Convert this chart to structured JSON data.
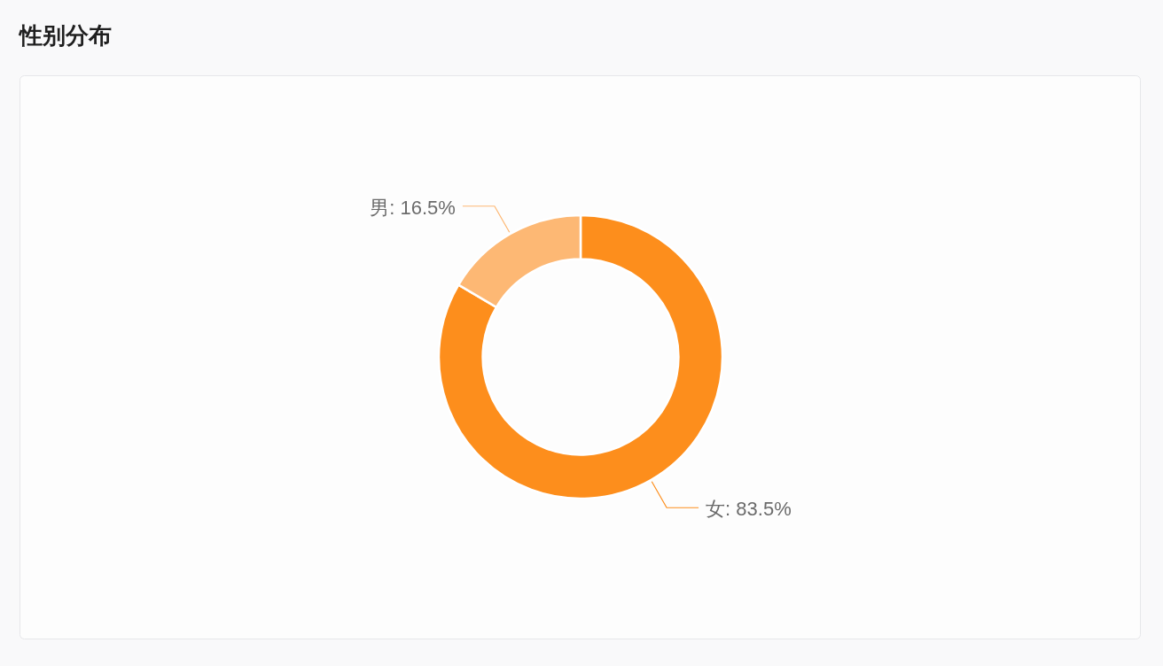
{
  "chart_data": {
    "type": "donut",
    "title": "性别分布",
    "categories": [
      "女",
      "男"
    ],
    "values": [
      83.5,
      16.5
    ],
    "colors": [
      "#fd8e1c",
      "#fdb874"
    ],
    "value_labels": [
      ": 83.5%",
      ": 16.5%"
    ]
  }
}
